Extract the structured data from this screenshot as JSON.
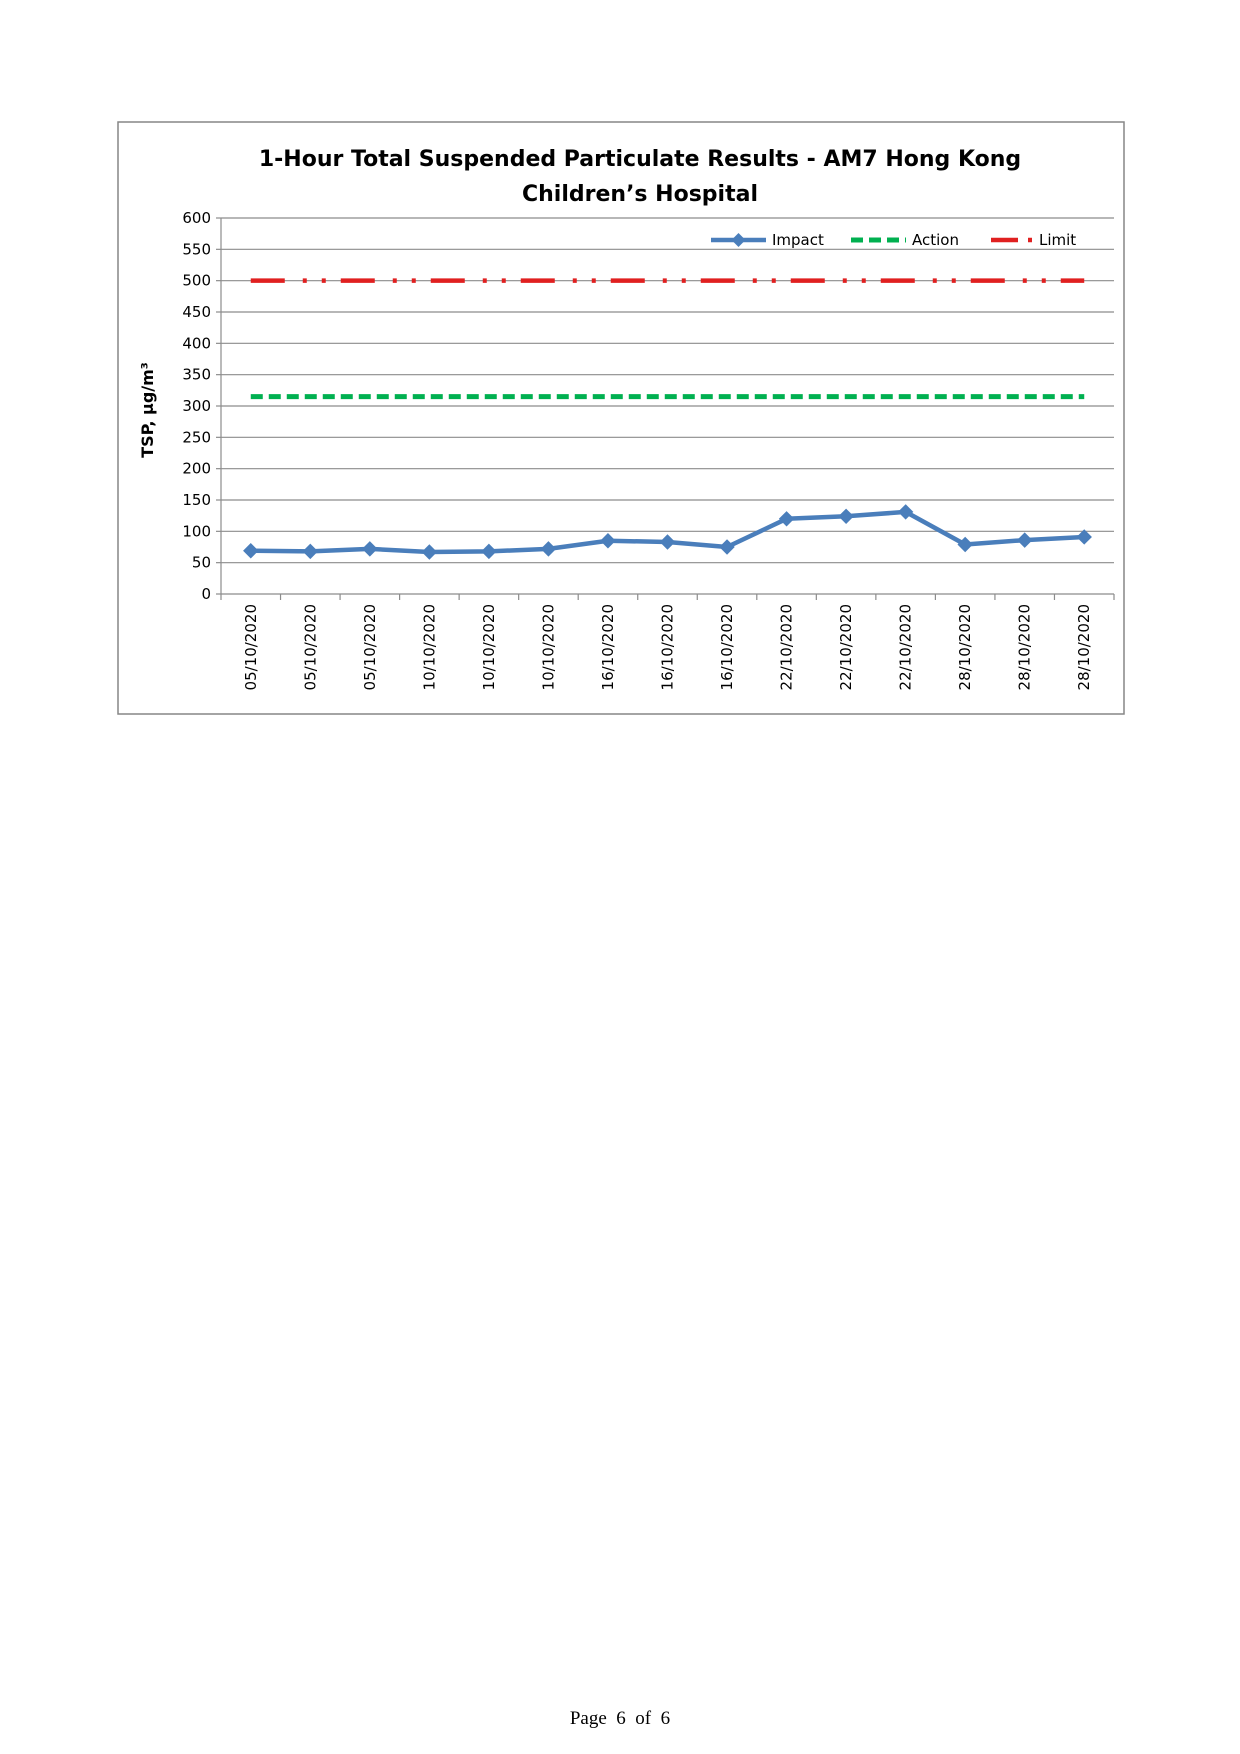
{
  "chart_data": {
    "type": "line",
    "title_lines": [
      "1-Hour Total Suspended Particulate Results - AM7 Hong Kong",
      "Children’s Hospital"
    ],
    "xlabel": "",
    "ylabel": "TSP, μg/m³",
    "ylim": [
      0,
      600
    ],
    "yticks": [
      0,
      50,
      100,
      150,
      200,
      250,
      300,
      350,
      400,
      450,
      500,
      550,
      600
    ],
    "grid": true,
    "legend_position": "top-right",
    "categories": [
      "05/10/2020",
      "05/10/2020",
      "05/10/2020",
      "10/10/2020",
      "10/10/2020",
      "10/10/2020",
      "16/10/2020",
      "16/10/2020",
      "16/10/2020",
      "22/10/2020",
      "22/10/2020",
      "22/10/2020",
      "28/10/2020",
      "28/10/2020",
      "28/10/2020"
    ],
    "series": [
      {
        "name": "Impact",
        "color": "#4a7ebb",
        "style": "solid-diamond",
        "values": [
          69,
          68,
          72,
          67,
          68,
          72,
          85,
          83,
          75,
          120,
          124,
          131,
          79,
          86,
          91
        ]
      },
      {
        "name": "Action",
        "color": "#00b050",
        "style": "dashed",
        "values": [
          315,
          315,
          315,
          315,
          315,
          315,
          315,
          315,
          315,
          315,
          315,
          315,
          315,
          315,
          315
        ]
      },
      {
        "name": "Limit",
        "color": "#e02020",
        "style": "dash-dot-dot",
        "values": [
          500,
          500,
          500,
          500,
          500,
          500,
          500,
          500,
          500,
          500,
          500,
          500,
          500,
          500,
          500
        ]
      }
    ]
  },
  "footer": {
    "page_word": "Page",
    "page_current": "6",
    "of_word": "of",
    "page_total": "6"
  }
}
